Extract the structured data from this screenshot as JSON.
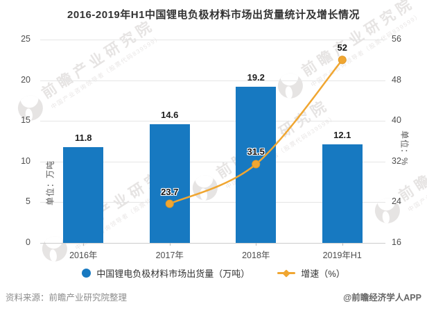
{
  "title": "2016-2019年H1中国锂电负极材料市场出货量统计及增长情况",
  "chart_data": {
    "type": "combo-bar-line",
    "categories": [
      "2016年",
      "2017年",
      "2018年",
      "2019年H1"
    ],
    "series": [
      {
        "name": "中国锂电负极材料市场出货量（万吨）",
        "type": "bar",
        "axis": "left",
        "values": [
          11.8,
          14.6,
          19.2,
          12.1
        ],
        "color": "#1779C1"
      },
      {
        "name": "增速（%）",
        "type": "line",
        "axis": "right",
        "values": [
          null,
          23.7,
          31.5,
          52
        ],
        "color": "#F0A631"
      }
    ],
    "left_axis": {
      "name": "单位：万吨",
      "min": 0,
      "max": 25,
      "ticks": [
        25,
        20,
        15,
        10,
        5,
        0
      ]
    },
    "right_axis": {
      "name": "单位：%",
      "min": 16,
      "max": 56,
      "ticks": [
        56,
        48,
        40,
        32,
        24,
        16
      ]
    },
    "grid": true,
    "legend_position": "bottom"
  },
  "legend": {
    "bar_label": "中国锂电负极材料市场出货量（万吨）",
    "line_label": "增速（%）"
  },
  "footer": {
    "source": "资料来源：前瞻产业研究院整理",
    "brand": "@前瞻经济学人APP"
  },
  "watermark": {
    "text": "前瞻产业研究院",
    "subtext": "中国产业咨询领导者（股票代码839599）"
  },
  "colors": {
    "bar": "#1779C1",
    "line": "#F0A631",
    "line_marker_stroke": "#E29A27",
    "grid": "#e5e5e5",
    "axis_line": "#cccccc",
    "title_text": "#333333",
    "axis_text": "#4d4d4d",
    "source_text": "#8c8c8c"
  }
}
